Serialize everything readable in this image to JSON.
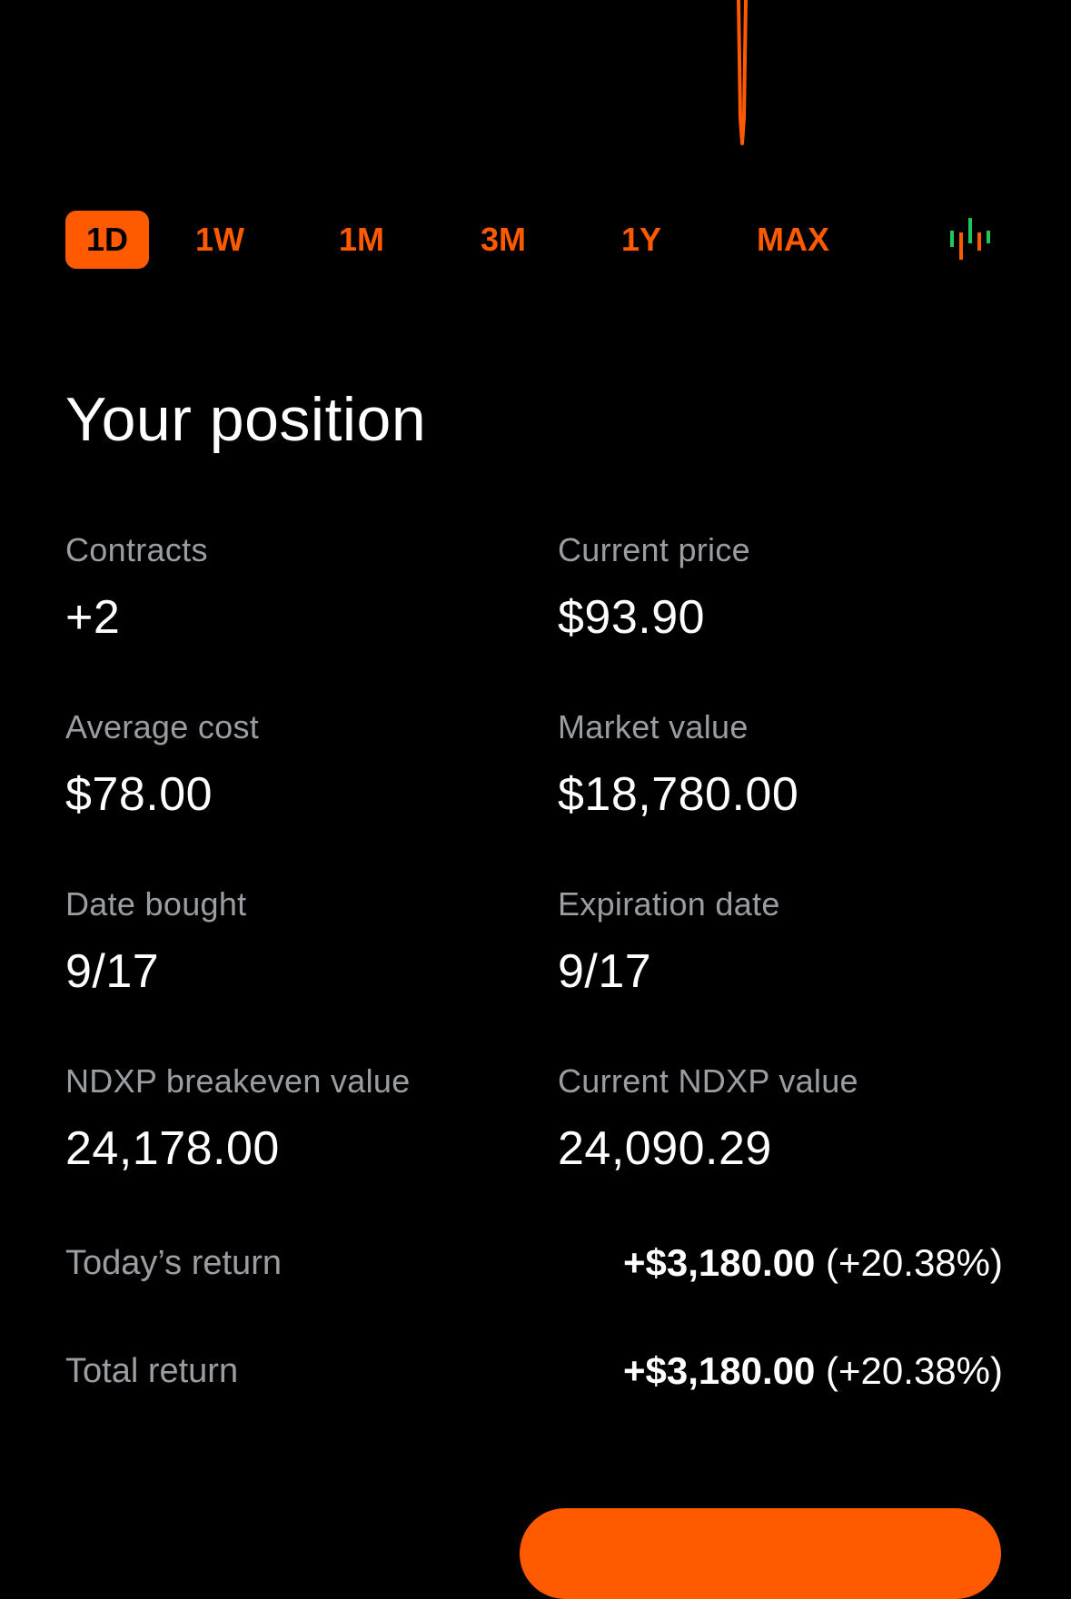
{
  "colors": {
    "accent": "#ff5a00",
    "background": "#000000",
    "label": "#9a9ea3",
    "value": "#ffffff",
    "candle_green": "#21c55d"
  },
  "range_tabs": [
    {
      "label": "1D",
      "active": true
    },
    {
      "label": "1W",
      "active": false
    },
    {
      "label": "1M",
      "active": false
    },
    {
      "label": "3M",
      "active": false
    },
    {
      "label": "1Y",
      "active": false
    },
    {
      "label": "MAX",
      "active": false
    }
  ],
  "chart_toggle_icon": "candlestick-chart-icon",
  "position": {
    "title": "Your position",
    "stats": [
      {
        "label": "Contracts",
        "value": "+2"
      },
      {
        "label": "Current price",
        "value": "$93.90"
      },
      {
        "label": "Average cost",
        "value": "$78.00"
      },
      {
        "label": "Market value",
        "value": "$18,780.00"
      },
      {
        "label": "Date bought",
        "value": "9/17"
      },
      {
        "label": "Expiration date",
        "value": "9/17"
      },
      {
        "label": "NDXP breakeven value",
        "value": "24,178.00"
      },
      {
        "label": "Current NDXP value",
        "value": "24,090.29"
      }
    ],
    "todays_return": {
      "label": "Today’s return",
      "amount": "+$3,180.00",
      "percent": "(+20.38%)"
    },
    "total_return": {
      "label": "Total return",
      "amount": "+$3,180.00",
      "percent": "(+20.38%)"
    }
  }
}
